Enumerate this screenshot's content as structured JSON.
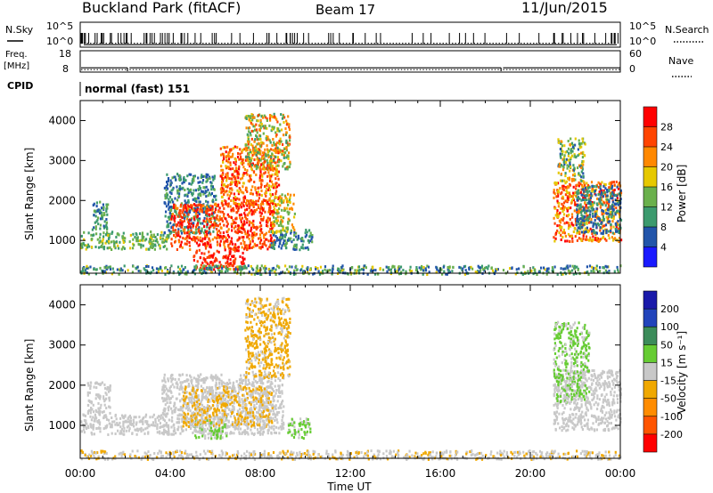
{
  "header": {
    "station": "Buckland Park (fitACF)",
    "beam": "Beam 17",
    "date": "11/Jun/2015"
  },
  "status_panels": {
    "nsky_label": "N.Sky",
    "nsky_ticks": [
      "10^5",
      "10^0"
    ],
    "nsearch_label": "N.Search",
    "nsearch_ticks": [
      "10^5",
      "10^0"
    ],
    "freq_label": "Freq.",
    "freq_unit": "[MHz]",
    "freq_ticks": [
      "18",
      "8"
    ],
    "nave_label": "Nave",
    "nave_ticks": [
      "60",
      "0"
    ],
    "cpid_label": "CPID",
    "cpid_value": "normal (fast) 151",
    "sky_noise_log": 0.5,
    "search_noise_log": 0.6,
    "freq_mhz": 10,
    "nave": 14,
    "gaps_hours": [
      2.1,
      18.7
    ]
  },
  "colors": {
    "power": [
      "#1a1aff",
      "#2255aa",
      "#3c9a6e",
      "#6ab04c",
      "#e6c800",
      "#ff8800",
      "#ff4400",
      "#ff0000"
    ],
    "velocity": [
      "#ff0000",
      "#ff5500",
      "#ff8c00",
      "#f0a800",
      "#c8c8c8",
      "#66cc33",
      "#3c8c5a",
      "#2244bb",
      "#1a1aaa"
    ]
  },
  "chart_data": [
    {
      "type": "heatmap",
      "name": "power",
      "ylabel": "Slant Range [km]",
      "yticks": [
        1000,
        2000,
        3000,
        4000
      ],
      "ylim": [
        180,
        4500
      ],
      "xlim": [
        0,
        24
      ],
      "colorbar_label": "Power [dB]",
      "colorbar_ticks": [
        "4",
        "8",
        "12",
        "16",
        "20",
        "24",
        "28"
      ],
      "colorbar_range": [
        0,
        32
      ],
      "regions": [
        {
          "t0": 0.0,
          "t1": 3.9,
          "r0": 800,
          "r1": 1250,
          "v0": 8,
          "v1": 18
        },
        {
          "t0": 0.5,
          "t1": 1.2,
          "r0": 1300,
          "r1": 2000,
          "v0": 6,
          "v1": 14
        },
        {
          "t0": 3.7,
          "t1": 6.0,
          "r0": 1200,
          "r1": 2700,
          "v0": 4,
          "v1": 14
        },
        {
          "t0": 4.0,
          "t1": 8.6,
          "r0": 800,
          "r1": 1950,
          "v0": 22,
          "v1": 31
        },
        {
          "t0": 5.0,
          "t1": 7.3,
          "r0": 300,
          "r1": 800,
          "v0": 24,
          "v1": 31
        },
        {
          "t0": 6.2,
          "t1": 8.8,
          "r0": 1900,
          "r1": 3400,
          "v0": 18,
          "v1": 30
        },
        {
          "t0": 7.3,
          "t1": 9.3,
          "r0": 2800,
          "r1": 4200,
          "v0": 10,
          "v1": 26
        },
        {
          "t0": 8.4,
          "t1": 10.3,
          "r0": 800,
          "r1": 1300,
          "v0": 4,
          "v1": 14
        },
        {
          "t0": 8.5,
          "t1": 9.5,
          "r0": 1200,
          "r1": 2200,
          "v0": 12,
          "v1": 24
        },
        {
          "t0": 21.0,
          "t1": 24.0,
          "r0": 1000,
          "r1": 2500,
          "v0": 16,
          "v1": 30
        },
        {
          "t0": 22.0,
          "t1": 24.0,
          "r0": 1200,
          "r1": 2400,
          "v0": 4,
          "v1": 12
        },
        {
          "t0": 21.2,
          "t1": 22.4,
          "r0": 2500,
          "r1": 3600,
          "v0": 6,
          "v1": 22
        },
        {
          "t0": 0.0,
          "t1": 24.0,
          "r0": 180,
          "r1": 400,
          "v0": 4,
          "v1": 18
        }
      ]
    },
    {
      "type": "heatmap",
      "name": "velocity",
      "ylabel": "Slant Range [km]",
      "yticks": [
        1000,
        2000,
        3000,
        4000
      ],
      "ylim": [
        180,
        4500
      ],
      "xlim": [
        0,
        24
      ],
      "xticks": [
        "00:00",
        "04:00",
        "08:00",
        "12:00",
        "16:00",
        "20:00",
        "00:00"
      ],
      "xlabel": "Time UT",
      "colorbar_label": "Velocity [m s⁻¹]",
      "colorbar_ticks": [
        "-200",
        "-100",
        "-50",
        "-15",
        "15",
        "50",
        "100",
        "200"
      ],
      "colorbar_range": [
        -250,
        250
      ],
      "regions": [
        {
          "t0": 0.0,
          "t1": 3.9,
          "r0": 800,
          "r1": 1300,
          "v0": -10,
          "v1": 10
        },
        {
          "t0": 0.3,
          "t1": 1.3,
          "r0": 1300,
          "r1": 2100,
          "v0": -12,
          "v1": 12
        },
        {
          "t0": 3.6,
          "t1": 9.0,
          "r0": 800,
          "r1": 2300,
          "v0": -12,
          "v1": 12
        },
        {
          "t0": 5.0,
          "t1": 6.5,
          "r0": 700,
          "r1": 1200,
          "v0": 20,
          "v1": 40
        },
        {
          "t0": 4.5,
          "t1": 8.5,
          "r0": 1000,
          "r1": 2000,
          "v0": -40,
          "v1": -20
        },
        {
          "t0": 7.3,
          "t1": 9.3,
          "r0": 2200,
          "r1": 4200,
          "v0": -45,
          "v1": -20
        },
        {
          "t0": 9.2,
          "t1": 10.2,
          "r0": 700,
          "r1": 1200,
          "v0": 20,
          "v1": 45
        },
        {
          "t0": 21.0,
          "t1": 24.0,
          "r0": 900,
          "r1": 2400,
          "v0": -12,
          "v1": 12
        },
        {
          "t0": 21.0,
          "t1": 22.6,
          "r0": 1600,
          "r1": 3600,
          "v0": 20,
          "v1": 45
        },
        {
          "t0": 0.0,
          "t1": 24.0,
          "r0": 180,
          "r1": 400,
          "v0": -45,
          "v1": 12
        }
      ]
    }
  ]
}
